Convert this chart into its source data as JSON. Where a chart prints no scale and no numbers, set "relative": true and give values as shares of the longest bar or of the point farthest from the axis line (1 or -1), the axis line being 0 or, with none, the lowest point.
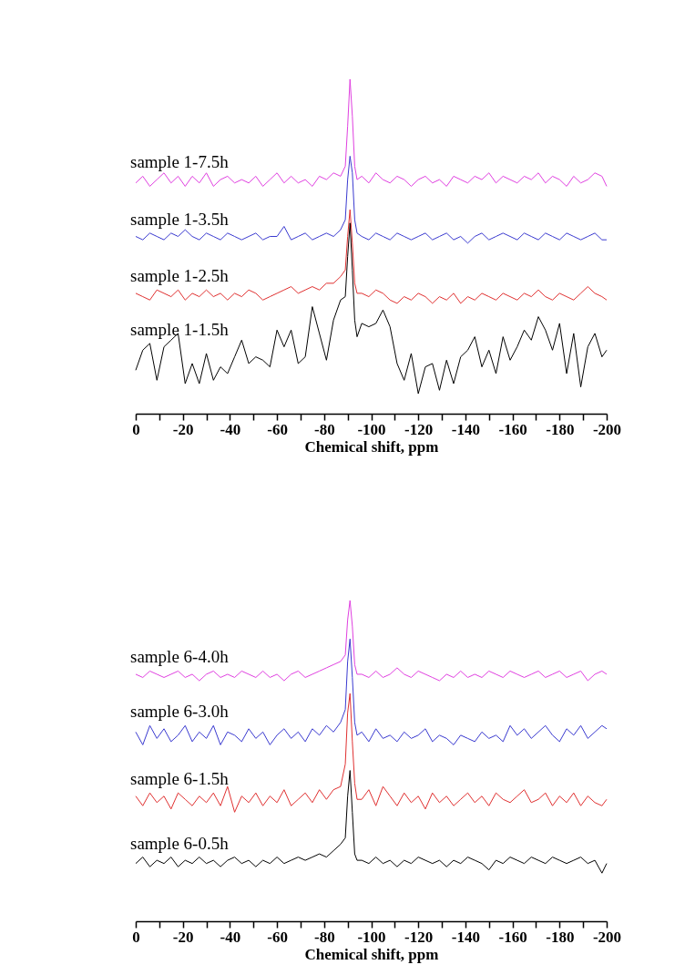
{
  "chart_data": [
    {
      "type": "line",
      "relative": true,
      "xlabel": "Chemical shift, ppm",
      "xlim": [
        0,
        -200
      ],
      "xticks": [
        0,
        {
          "value": -10,
          "label": null
        },
        -20,
        {
          "value": -30,
          "label": null
        },
        -40,
        {
          "value": -50,
          "label": null
        },
        -60,
        {
          "value": -70,
          "label": null
        },
        -80,
        {
          "value": -90,
          "label": null
        },
        -100,
        {
          "value": -110,
          "label": null
        },
        -120,
        {
          "value": -130,
          "label": null
        },
        -140,
        {
          "value": -150,
          "label": null
        },
        -160,
        {
          "value": -170,
          "label": null
        },
        -180,
        {
          "value": -190,
          "label": null
        },
        -200
      ],
      "x": [
        0,
        -3,
        -6,
        -9,
        -12,
        -15,
        -18,
        -21,
        -24,
        -27,
        -30,
        -33,
        -36,
        -39,
        -42,
        -45,
        -48,
        -51,
        -54,
        -57,
        -60,
        -63,
        -66,
        -69,
        -72,
        -75,
        -78,
        -81,
        -84,
        -87,
        -89,
        -90,
        -91,
        -92,
        -93,
        -94,
        -96,
        -99,
        -102,
        -105,
        -108,
        -111,
        -114,
        -117,
        -120,
        -123,
        -126,
        -129,
        -132,
        -135,
        -138,
        -141,
        -144,
        -147,
        -150,
        -153,
        -156,
        -159,
        -162,
        -165,
        -168,
        -171,
        -174,
        -177,
        -180,
        -183,
        -186,
        -189,
        -192,
        -195,
        -198,
        -200
      ],
      "series": [
        {
          "name": "sample 1-7.5h",
          "color": "#e040e0",
          "values": [
            0.69,
            0.71,
            0.68,
            0.7,
            0.72,
            0.69,
            0.71,
            0.68,
            0.71,
            0.69,
            0.72,
            0.68,
            0.7,
            0.71,
            0.69,
            0.7,
            0.69,
            0.71,
            0.68,
            0.7,
            0.72,
            0.69,
            0.71,
            0.69,
            0.7,
            0.68,
            0.71,
            0.7,
            0.72,
            0.71,
            0.74,
            0.86,
            1.0,
            0.89,
            0.74,
            0.7,
            0.71,
            0.69,
            0.72,
            0.7,
            0.69,
            0.71,
            0.7,
            0.68,
            0.7,
            0.71,
            0.69,
            0.7,
            0.68,
            0.71,
            0.7,
            0.69,
            0.71,
            0.7,
            0.72,
            0.69,
            0.71,
            0.7,
            0.69,
            0.71,
            0.7,
            0.72,
            0.69,
            0.71,
            0.7,
            0.68,
            0.71,
            0.69,
            0.7,
            0.72,
            0.71,
            0.68
          ]
        },
        {
          "name": "sample 1-3.5h",
          "color": "#3a3ad0",
          "values": [
            0.53,
            0.52,
            0.54,
            0.53,
            0.52,
            0.54,
            0.53,
            0.55,
            0.53,
            0.52,
            0.54,
            0.53,
            0.52,
            0.54,
            0.53,
            0.52,
            0.53,
            0.54,
            0.52,
            0.53,
            0.53,
            0.56,
            0.52,
            0.53,
            0.54,
            0.52,
            0.53,
            0.54,
            0.53,
            0.55,
            0.58,
            0.7,
            0.77,
            0.72,
            0.58,
            0.54,
            0.53,
            0.52,
            0.54,
            0.53,
            0.52,
            0.54,
            0.53,
            0.52,
            0.53,
            0.54,
            0.52,
            0.53,
            0.54,
            0.52,
            0.53,
            0.51,
            0.53,
            0.54,
            0.52,
            0.53,
            0.54,
            0.53,
            0.52,
            0.54,
            0.53,
            0.52,
            0.54,
            0.53,
            0.52,
            0.54,
            0.53,
            0.52,
            0.53,
            0.54,
            0.52,
            0.52
          ]
        },
        {
          "name": "sample 1-2.5h",
          "color": "#e03030",
          "values": [
            0.36,
            0.35,
            0.34,
            0.37,
            0.36,
            0.35,
            0.37,
            0.34,
            0.36,
            0.35,
            0.37,
            0.35,
            0.36,
            0.34,
            0.36,
            0.35,
            0.37,
            0.36,
            0.34,
            0.35,
            0.36,
            0.37,
            0.38,
            0.36,
            0.37,
            0.38,
            0.37,
            0.39,
            0.39,
            0.41,
            0.43,
            0.53,
            0.61,
            0.51,
            0.39,
            0.36,
            0.36,
            0.35,
            0.37,
            0.36,
            0.34,
            0.33,
            0.35,
            0.34,
            0.36,
            0.35,
            0.33,
            0.35,
            0.34,
            0.36,
            0.33,
            0.35,
            0.34,
            0.36,
            0.35,
            0.34,
            0.36,
            0.35,
            0.34,
            0.36,
            0.35,
            0.37,
            0.35,
            0.34,
            0.36,
            0.35,
            0.34,
            0.36,
            0.38,
            0.36,
            0.35,
            0.34
          ]
        },
        {
          "name": "sample 1-1.5h",
          "color": "#000000",
          "values": [
            0.13,
            0.19,
            0.21,
            0.1,
            0.2,
            0.22,
            0.24,
            0.09,
            0.15,
            0.09,
            0.18,
            0.1,
            0.14,
            0.12,
            0.17,
            0.22,
            0.15,
            0.17,
            0.16,
            0.14,
            0.25,
            0.2,
            0.25,
            0.15,
            0.17,
            0.32,
            0.24,
            0.16,
            0.28,
            0.34,
            0.35,
            0.47,
            0.57,
            0.43,
            0.28,
            0.23,
            0.27,
            0.26,
            0.27,
            0.31,
            0.26,
            0.15,
            0.1,
            0.18,
            0.06,
            0.14,
            0.15,
            0.07,
            0.16,
            0.09,
            0.17,
            0.19,
            0.23,
            0.14,
            0.19,
            0.12,
            0.23,
            0.16,
            0.2,
            0.25,
            0.22,
            0.29,
            0.25,
            0.19,
            0.27,
            0.12,
            0.24,
            0.08,
            0.2,
            0.24,
            0.17,
            0.19
          ]
        }
      ]
    },
    {
      "type": "line",
      "relative": true,
      "xlabel": "Chemical shift, ppm",
      "xlim": [
        0,
        -200
      ],
      "xticks": [
        0,
        {
          "value": -10,
          "label": null
        },
        -20,
        {
          "value": -30,
          "label": null
        },
        -40,
        {
          "value": -50,
          "label": null
        },
        -60,
        {
          "value": -70,
          "label": null
        },
        -80,
        {
          "value": -90,
          "label": null
        },
        -100,
        {
          "value": -110,
          "label": null
        },
        -120,
        {
          "value": -130,
          "label": null
        },
        -140,
        {
          "value": -150,
          "label": null
        },
        -160,
        {
          "value": -170,
          "label": null
        },
        -180,
        {
          "value": -190,
          "label": null
        },
        -200
      ],
      "x": [
        0,
        -3,
        -6,
        -9,
        -12,
        -15,
        -18,
        -21,
        -24,
        -27,
        -30,
        -33,
        -36,
        -39,
        -42,
        -45,
        -48,
        -51,
        -54,
        -57,
        -60,
        -63,
        -66,
        -69,
        -72,
        -75,
        -78,
        -81,
        -84,
        -87,
        -89,
        -90,
        -91,
        -92,
        -93,
        -94,
        -96,
        -99,
        -102,
        -105,
        -108,
        -111,
        -114,
        -117,
        -120,
        -123,
        -126,
        -129,
        -132,
        -135,
        -138,
        -141,
        -144,
        -147,
        -150,
        -153,
        -156,
        -159,
        -162,
        -165,
        -168,
        -171,
        -174,
        -177,
        -180,
        -183,
        -186,
        -189,
        -192,
        -195,
        -198,
        -200
      ],
      "series": [
        {
          "name": "sample 6-4.0h",
          "color": "#e040e0",
          "values": [
            0.77,
            0.76,
            0.78,
            0.77,
            0.76,
            0.77,
            0.78,
            0.76,
            0.77,
            0.75,
            0.77,
            0.78,
            0.76,
            0.77,
            0.76,
            0.78,
            0.77,
            0.76,
            0.78,
            0.76,
            0.77,
            0.75,
            0.77,
            0.78,
            0.76,
            0.77,
            0.78,
            0.79,
            0.8,
            0.81,
            0.83,
            0.94,
            1.0,
            0.92,
            0.8,
            0.77,
            0.77,
            0.76,
            0.78,
            0.76,
            0.77,
            0.79,
            0.77,
            0.76,
            0.78,
            0.77,
            0.76,
            0.75,
            0.77,
            0.76,
            0.78,
            0.76,
            0.77,
            0.76,
            0.78,
            0.77,
            0.76,
            0.78,
            0.77,
            0.76,
            0.77,
            0.78,
            0.76,
            0.77,
            0.78,
            0.76,
            0.77,
            0.78,
            0.75,
            0.77,
            0.78,
            0.77
          ]
        },
        {
          "name": "sample 6-3.0h",
          "color": "#3a3ad0",
          "values": [
            0.59,
            0.55,
            0.61,
            0.57,
            0.6,
            0.56,
            0.58,
            0.61,
            0.56,
            0.59,
            0.57,
            0.61,
            0.55,
            0.59,
            0.58,
            0.56,
            0.6,
            0.57,
            0.59,
            0.55,
            0.58,
            0.6,
            0.57,
            0.59,
            0.56,
            0.6,
            0.58,
            0.61,
            0.59,
            0.62,
            0.66,
            0.81,
            0.88,
            0.76,
            0.62,
            0.58,
            0.59,
            0.56,
            0.6,
            0.57,
            0.58,
            0.56,
            0.59,
            0.57,
            0.58,
            0.6,
            0.56,
            0.58,
            0.57,
            0.55,
            0.58,
            0.57,
            0.56,
            0.59,
            0.57,
            0.58,
            0.56,
            0.61,
            0.58,
            0.6,
            0.57,
            0.59,
            0.61,
            0.58,
            0.56,
            0.6,
            0.58,
            0.61,
            0.57,
            0.59,
            0.61,
            0.6
          ]
        },
        {
          "name": "sample 6-1.5h",
          "color": "#e03030",
          "values": [
            0.39,
            0.36,
            0.4,
            0.37,
            0.39,
            0.35,
            0.4,
            0.38,
            0.36,
            0.39,
            0.37,
            0.4,
            0.36,
            0.42,
            0.34,
            0.39,
            0.37,
            0.4,
            0.36,
            0.39,
            0.37,
            0.41,
            0.36,
            0.38,
            0.4,
            0.37,
            0.41,
            0.38,
            0.41,
            0.42,
            0.49,
            0.65,
            0.71,
            0.56,
            0.43,
            0.38,
            0.38,
            0.41,
            0.36,
            0.42,
            0.39,
            0.36,
            0.4,
            0.37,
            0.39,
            0.35,
            0.4,
            0.37,
            0.39,
            0.36,
            0.38,
            0.4,
            0.37,
            0.39,
            0.36,
            0.4,
            0.38,
            0.37,
            0.39,
            0.41,
            0.37,
            0.38,
            0.4,
            0.36,
            0.39,
            0.37,
            0.4,
            0.36,
            0.39,
            0.37,
            0.36,
            0.38
          ]
        },
        {
          "name": "sample 6-0.5h",
          "color": "#000000",
          "values": [
            0.18,
            0.2,
            0.17,
            0.19,
            0.18,
            0.2,
            0.17,
            0.19,
            0.18,
            0.2,
            0.18,
            0.19,
            0.17,
            0.19,
            0.2,
            0.18,
            0.19,
            0.17,
            0.19,
            0.18,
            0.2,
            0.18,
            0.19,
            0.2,
            0.19,
            0.2,
            0.21,
            0.2,
            0.22,
            0.24,
            0.26,
            0.39,
            0.47,
            0.34,
            0.21,
            0.19,
            0.19,
            0.18,
            0.2,
            0.18,
            0.19,
            0.17,
            0.19,
            0.18,
            0.2,
            0.19,
            0.18,
            0.19,
            0.17,
            0.19,
            0.18,
            0.2,
            0.19,
            0.18,
            0.16,
            0.19,
            0.18,
            0.2,
            0.19,
            0.18,
            0.2,
            0.19,
            0.18,
            0.2,
            0.19,
            0.18,
            0.19,
            0.2,
            0.18,
            0.19,
            0.15,
            0.18
          ]
        }
      ]
    }
  ]
}
